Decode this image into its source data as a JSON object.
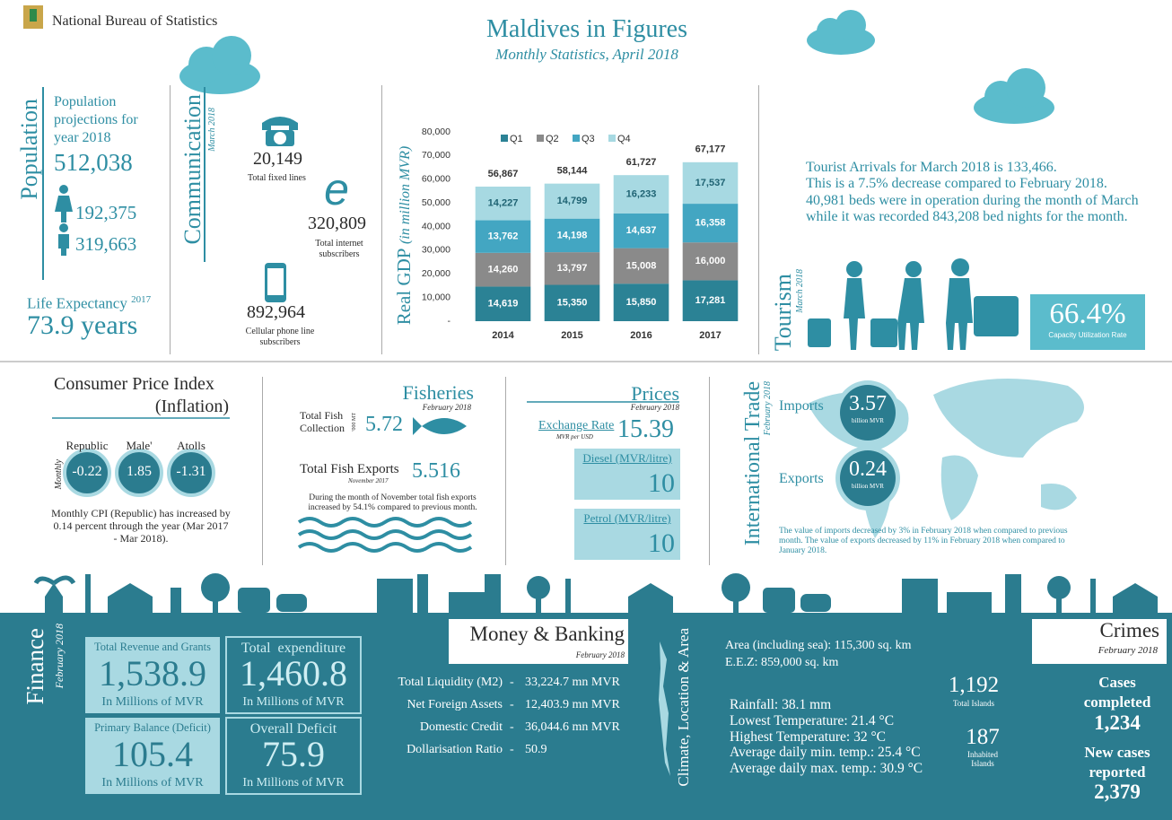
{
  "header": {
    "organization": "National Bureau of Statistics",
    "title": "Maldives in Figures",
    "subtitle": "Monthly Statistics, April 2018"
  },
  "population": {
    "heading": "Population",
    "projection_label": "Population projections for year 2018",
    "total": "512,038",
    "female": "192,375",
    "male": "319,663",
    "life_expectancy_label": "Life Expectancy",
    "life_expectancy_year": "2017",
    "life_expectancy": "73.9 years"
  },
  "communication": {
    "heading": "Communication",
    "period": "March 2018",
    "fixed_lines": "20,149",
    "fixed_lines_label": "Total fixed lines",
    "internet": "320,809",
    "internet_label": "Total internet subscribers",
    "cellular": "892,964",
    "cellular_label": "Cellular phone line subscribers"
  },
  "chart_data": {
    "type": "bar",
    "stacked": true,
    "y_label": "Real GDP",
    "y_label_unit": "(in million MVR)",
    "categories": [
      "2014",
      "2015",
      "2016",
      "2017"
    ],
    "series": [
      {
        "name": "Q1",
        "color": "#2b8295",
        "label_color": "#ffffff",
        "values": [
          14619,
          15350,
          15850,
          17281
        ],
        "value_labels": [
          "14,619",
          "15,350",
          "15,850",
          "17,281"
        ]
      },
      {
        "name": "Q2",
        "color": "#8a8a8a",
        "label_color": "#ffffff",
        "values": [
          14260,
          13797,
          15008,
          16000
        ],
        "value_labels": [
          "14,260",
          "13,797",
          "15,008",
          "16,000"
        ]
      },
      {
        "name": "Q3",
        "color": "#43a6c2",
        "label_color": "#ffffff",
        "values": [
          13762,
          14198,
          14637,
          16358
        ],
        "value_labels": [
          "13,762",
          "14,198",
          "14,637",
          "16,358"
        ]
      },
      {
        "name": "Q4",
        "color": "#a7d9e2",
        "label_color": "#1f6373",
        "values": [
          14227,
          14799,
          16233,
          17537
        ],
        "value_labels": [
          "14,227",
          "14,799",
          "16,233",
          "17,537"
        ]
      }
    ],
    "totals": {
      "values": [
        56867,
        58144,
        61727,
        67177
      ],
      "value_labels": [
        "56,867",
        "58,144",
        "61,727",
        "67,177"
      ]
    },
    "ylim": [
      0,
      80000
    ],
    "yticks": [
      {
        "value": 0,
        "label": "-"
      },
      {
        "value": 10000,
        "label": "10,000"
      },
      {
        "value": 20000,
        "label": "20,000"
      },
      {
        "value": 30000,
        "label": "30,000"
      },
      {
        "value": 40000,
        "label": "40,000"
      },
      {
        "value": 50000,
        "label": "50,000"
      },
      {
        "value": 60000,
        "label": "60,000"
      },
      {
        "value": 70000,
        "label": "70,000"
      },
      {
        "value": 80000,
        "label": "80,000"
      }
    ],
    "grid": false
  },
  "tourism": {
    "heading": "Tourism",
    "period": "March 2018",
    "text": [
      "Tourist Arrivals for March 2018 is 133,466.",
      "This is a 7.5% decrease compared to February 2018.",
      "40,981 beds were in operation during the month of March",
      "while it was recorded 843,208 bed nights for the month."
    ],
    "capacity": "66.4%",
    "capacity_label": "Capacity Utilization Rate"
  },
  "cpi": {
    "title": "Consumer Price Index",
    "subtitle": "(Inflation)",
    "frequency": "Monthly",
    "items": [
      {
        "label": "Republic",
        "value": "-0.22"
      },
      {
        "label": "Male'",
        "value": "1.85"
      },
      {
        "label": "Atolls",
        "value": "-1.31"
      }
    ],
    "note": "Monthly CPI (Republic) has increased by 0.14 percent through the year (Mar 2017 - Mar 2018)."
  },
  "fisheries": {
    "title": "Fisheries",
    "period": "February 2018",
    "collection_label": "Total Fish Collection",
    "collection_unit": "'000 MT",
    "collection": "5.72",
    "exports_label": "Total Fish Exports",
    "exports_period": "November 2017",
    "exports": "5.516",
    "note": "During the month of November total fish exports increased by 54.1% compared to previous month."
  },
  "prices": {
    "title": "Prices",
    "period": "February 2018",
    "exchange_label": "Exchange Rate",
    "exchange_unit": "MVR per USD",
    "exchange_rate": "15.39",
    "diesel_label": "Diesel (MVR/litre)",
    "diesel": "10",
    "petrol_label": "Petrol (MVR/litre)",
    "petrol": "10"
  },
  "trade": {
    "title": "International Trade",
    "period": "February 2018",
    "imports_label": "Imports",
    "imports": "3.57",
    "imports_unit": "billion MVR",
    "exports_label": "Exports",
    "exports": "0.24",
    "exports_unit": "billion MVR",
    "note": "The value of imports decreased by 3% in  February 2018 when compared to previous month. The value of exports decreased by 11% in February 2018 when compared to January 2018."
  },
  "finance": {
    "title": "Finance",
    "period": "February 2018",
    "boxes": [
      {
        "label": "Total Revenue and Grants",
        "value": "1,538.9",
        "unit": "In Millions of MVR"
      },
      {
        "label": "Total  expenditure",
        "value": "1,460.8",
        "unit": "In Millions of MVR"
      },
      {
        "label": "Primary Balance (Deficit)",
        "value": "105.4",
        "unit": "In Millions of MVR"
      },
      {
        "label": "Overall Deficit",
        "value": "75.9",
        "unit": "In Millions of MVR"
      }
    ]
  },
  "banking": {
    "title": "Money & Banking",
    "period": "February 2018",
    "separator": "-",
    "rows": [
      {
        "label": "Total Liquidity (M2)",
        "value": "33,224.7 mn MVR"
      },
      {
        "label": "Net Foreign Assets",
        "value": "12,403.9 mn MVR"
      },
      {
        "label": "Domestic Credit",
        "value": "36,044.6 mn MVR"
      },
      {
        "label": "Dollarisation Ratio",
        "value": "50.9"
      }
    ]
  },
  "climate": {
    "title": "Climate, Location & Area",
    "area": "Area (including sea): 115,300 sq. km",
    "eez": "E.E.Z: 859,000 sq. km",
    "weather": [
      "Rainfall: 38.1 mm",
      "Lowest Temperature: 21.4 °C",
      "Highest Temperature: 32 °C",
      "Average daily min. temp.: 25.4 °C",
      "Average daily max. temp.: 30.9 °C"
    ],
    "total_islands": "1,192",
    "total_islands_label": "Total Islands",
    "inhabited": "187",
    "inhabited_label": "Inhabited Islands"
  },
  "crimes": {
    "title": "Crimes",
    "period": "February 2018",
    "completed_label": "Cases completed",
    "completed": "1,234",
    "new_label": "New cases reported",
    "new": "2,379"
  }
}
